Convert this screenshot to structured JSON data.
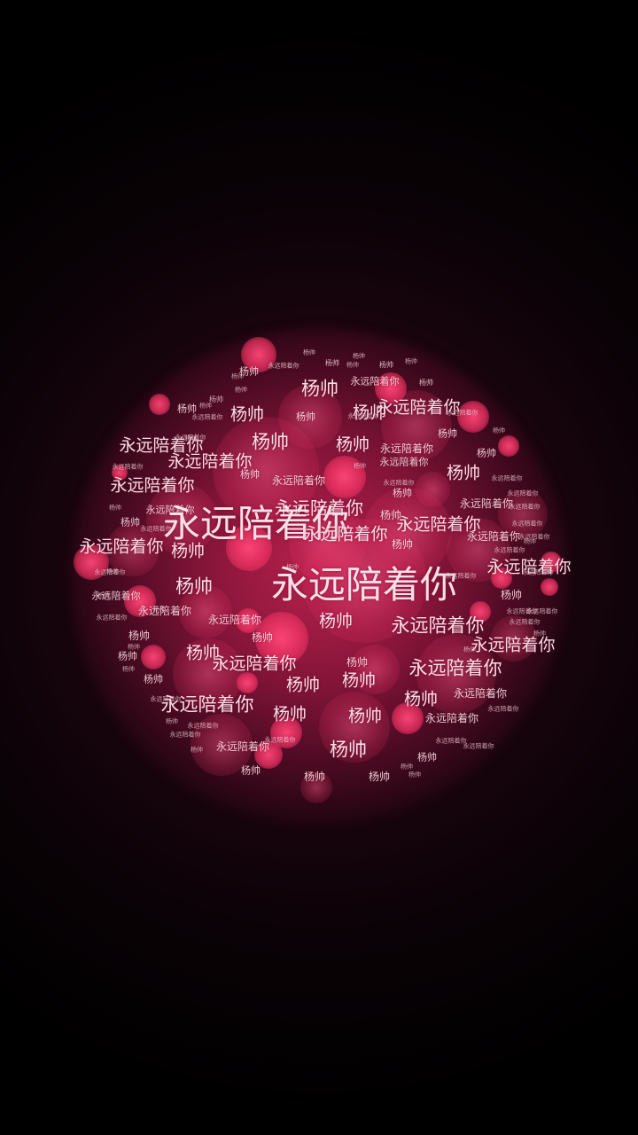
{
  "theme": {
    "background": "#000000",
    "glow_color": "#d7285a",
    "text_color": "#fff0f5",
    "bokeh_color": "#ff4678"
  },
  "words": [
    "杨帅",
    "杨帅",
    "永远陪着你",
    "杨帅",
    "杨帅",
    "杨帅",
    "杨帅",
    "永远陪着你",
    "杨帅",
    "杨帅",
    "杨帅",
    "杨帅",
    "杨帅",
    "杨帅",
    "杨帅",
    "永远陪着你",
    "杨帅",
    "永远陪着你",
    "永远陪着你",
    "杨帅",
    "永远陪着你",
    "杨帅",
    "杨帅",
    "杨帅",
    "永远陪着你",
    "永远陪着你",
    "杨帅",
    "永远陪着你",
    "杨帅",
    "杨帅",
    "永远陪着你",
    "杨帅",
    "永远陪着你",
    "永远陪着你",
    "永远陪着你",
    "杨帅",
    "永远陪着你",
    "永远陪着你",
    "杨帅",
    "永远陪着你",
    "永远陪着你",
    "杨帅",
    "永远陪着你",
    "永远陪着你",
    "杨帅",
    "永远陪着你",
    "永远陪着你",
    "永远陪着你",
    "永远陪着你",
    "永远陪着你",
    "杨帅",
    "永远陪着你",
    "永远陪着你",
    "杨帅",
    "永远陪着你",
    "永远陪着你",
    "永远陪着你",
    "杨帅",
    "杨帅",
    "永远陪着你",
    "永远陪着你",
    "永远陪着你",
    "永远陪着你",
    "杨帅",
    "永远陪着你",
    "永远陪着你",
    "永远陪着你",
    "杨帅",
    "杨帅",
    "永远陪着你",
    "杨帅",
    "杨帅",
    "永远陪着你",
    "杨帅",
    "杨帅",
    "永远陪着你",
    "杨帅",
    "杨帅",
    "杨帅",
    "永远陪着你",
    "杨帅",
    "永远陪着你",
    "杨帅",
    "杨帅",
    "杨帅",
    "永远陪着你",
    "永远陪着你",
    "永远陪着你",
    "杨帅",
    "永远陪着你",
    "杨帅",
    "杨帅",
    "杨帅",
    "杨帅",
    "杨帅",
    "杨帅",
    "杨帅",
    "杨帅",
    "永远陪着你",
    "永远陪着你",
    "杨帅",
    "永远陪着你",
    "杨帅",
    "永远陪着你",
    "杨帅",
    "杨帅",
    "杨帅",
    "永远陪着你",
    "杨帅",
    "杨帅",
    "杨帅",
    "永远陪着你",
    "永远陪着你",
    "永远陪着你",
    "永远陪着你",
    "永远陪着你",
    "杨帅",
    "杨帅",
    "永远陪着你",
    "杨帅",
    "永远陪着你"
  ]
}
